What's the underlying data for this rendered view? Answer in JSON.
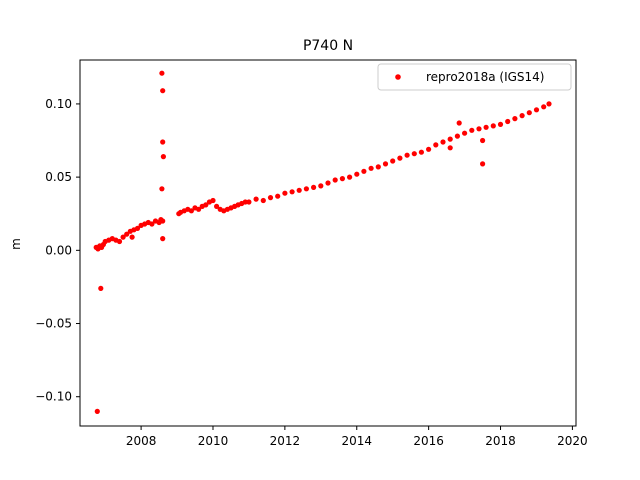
{
  "chart_data": {
    "type": "scatter",
    "title": "P740 N",
    "xlabel": "",
    "ylabel": "m",
    "xlim": [
      2006.3,
      2020.1
    ],
    "ylim": [
      -0.12,
      0.13
    ],
    "xticks": [
      2008,
      2010,
      2012,
      2014,
      2016,
      2018,
      2020
    ],
    "xtick_labels": [
      "2008",
      "2010",
      "2012",
      "2014",
      "2016",
      "2018",
      "2020"
    ],
    "yticks": [
      -0.1,
      -0.05,
      0.0,
      0.05,
      0.1
    ],
    "ytick_labels": [
      "−0.10",
      "−0.05",
      "0.00",
      "0.05",
      "0.10"
    ],
    "grid": false,
    "legend_position": "top-right",
    "series": [
      {
        "name": "repro2018a (IGS14)",
        "color": "#ff0000",
        "marker": "dot",
        "x": [
          2006.75,
          2006.8,
          2006.85,
          2006.9,
          2006.95,
          2007.0,
          2007.1,
          2007.2,
          2007.3,
          2007.4,
          2007.5,
          2007.6,
          2007.7,
          2007.8,
          2007.9,
          2008.0,
          2008.1,
          2008.2,
          2008.3,
          2008.4,
          2008.5,
          2008.55,
          2008.6,
          2009.05,
          2009.1,
          2009.2,
          2009.3,
          2009.4,
          2009.5,
          2009.6,
          2009.7,
          2009.8,
          2009.9,
          2010.0,
          2010.1,
          2010.2,
          2010.3,
          2010.4,
          2010.5,
          2010.6,
          2010.7,
          2010.8,
          2010.9,
          2011.0,
          2011.2,
          2011.4,
          2011.6,
          2011.8,
          2012.0,
          2012.2,
          2012.4,
          2012.6,
          2012.8,
          2013.0,
          2013.2,
          2013.4,
          2013.6,
          2013.8,
          2014.0,
          2014.2,
          2014.4,
          2014.6,
          2014.8,
          2015.0,
          2015.2,
          2015.4,
          2015.6,
          2015.8,
          2016.0,
          2016.2,
          2016.4,
          2016.6,
          2016.8,
          2017.0,
          2017.2,
          2017.4,
          2017.6,
          2017.8,
          2018.0,
          2018.2,
          2018.4,
          2018.6,
          2018.8,
          2019.0,
          2019.2,
          2019.35,
          2006.78,
          2006.88,
          2008.58,
          2008.6,
          2008.6,
          2008.62,
          2008.58,
          2008.6,
          2007.75,
          2016.85,
          2017.5,
          2017.5,
          2016.6
        ],
        "y": [
          0.002,
          0.001,
          0.003,
          0.002,
          0.004,
          0.006,
          0.007,
          0.008,
          0.007,
          0.006,
          0.009,
          0.011,
          0.013,
          0.014,
          0.015,
          0.017,
          0.018,
          0.019,
          0.018,
          0.02,
          0.019,
          0.021,
          0.02,
          0.025,
          0.026,
          0.027,
          0.028,
          0.027,
          0.029,
          0.028,
          0.03,
          0.031,
          0.033,
          0.034,
          0.03,
          0.028,
          0.027,
          0.028,
          0.029,
          0.03,
          0.031,
          0.032,
          0.033,
          0.033,
          0.035,
          0.034,
          0.036,
          0.037,
          0.039,
          0.04,
          0.041,
          0.042,
          0.043,
          0.044,
          0.046,
          0.048,
          0.049,
          0.05,
          0.052,
          0.054,
          0.056,
          0.057,
          0.059,
          0.061,
          0.063,
          0.065,
          0.066,
          0.067,
          0.069,
          0.072,
          0.074,
          0.076,
          0.078,
          0.08,
          0.082,
          0.083,
          0.084,
          0.085,
          0.086,
          0.088,
          0.09,
          0.092,
          0.094,
          0.096,
          0.098,
          0.1,
          -0.11,
          -0.026,
          0.121,
          0.109,
          0.074,
          0.064,
          0.042,
          0.008,
          0.009,
          0.087,
          0.059,
          0.075,
          0.07
        ]
      }
    ]
  }
}
